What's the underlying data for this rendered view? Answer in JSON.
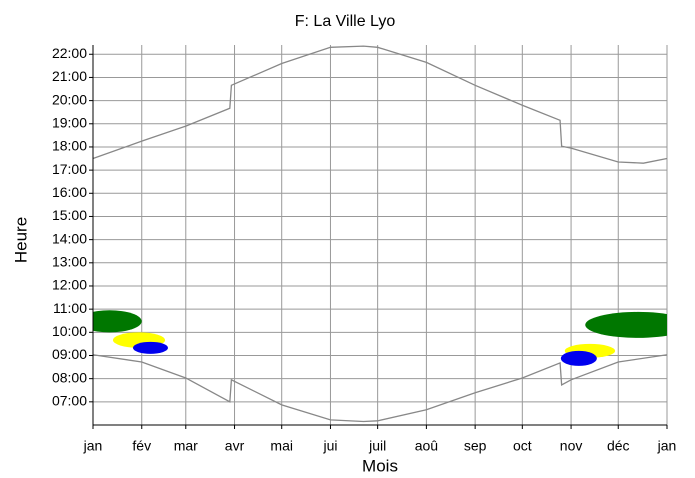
{
  "chart_data": {
    "type": "line",
    "title": "F: La Ville Lyo",
    "xlabel": "Mois",
    "ylabel": "Heure",
    "xlim": [
      0,
      365
    ],
    "xticks": [
      {
        "value": 0,
        "label": "jan"
      },
      {
        "value": 31,
        "label": "fév"
      },
      {
        "value": 59,
        "label": "mar"
      },
      {
        "value": 90,
        "label": "avr"
      },
      {
        "value": 120,
        "label": "mai"
      },
      {
        "value": 151,
        "label": "jui"
      },
      {
        "value": 181,
        "label": "juil"
      },
      {
        "value": 212,
        "label": "aoû"
      },
      {
        "value": 243,
        "label": "sep"
      },
      {
        "value": 273,
        "label": "oct"
      },
      {
        "value": 304,
        "label": "nov"
      },
      {
        "value": 334,
        "label": "déc"
      },
      {
        "value": 365,
        "label": "jan"
      }
    ],
    "ylim": [
      6,
      22.4
    ],
    "yticks": [
      {
        "value": 7,
        "label": "07:00"
      },
      {
        "value": 8,
        "label": "08:00"
      },
      {
        "value": 9,
        "label": "09:00"
      },
      {
        "value": 10,
        "label": "10:00"
      },
      {
        "value": 11,
        "label": "11:00"
      },
      {
        "value": 12,
        "label": "12:00"
      },
      {
        "value": 13,
        "label": "13:00"
      },
      {
        "value": 14,
        "label": "14:00"
      },
      {
        "value": 15,
        "label": "15:00"
      },
      {
        "value": 16,
        "label": "16:00"
      },
      {
        "value": 17,
        "label": "17:00"
      },
      {
        "value": 18,
        "label": "18:00"
      },
      {
        "value": 19,
        "label": "19:00"
      },
      {
        "value": 20,
        "label": "20:00"
      },
      {
        "value": 21,
        "label": "21:00"
      },
      {
        "value": 22,
        "label": "22:00"
      }
    ],
    "grid": true,
    "series": [
      {
        "color": "#888888",
        "x": [
          0,
          31,
          59,
          87,
          88,
          120,
          151,
          172,
          181,
          212,
          243,
          273,
          297,
          298,
          304,
          334,
          350,
          365
        ],
        "values": [
          17.5,
          18.25,
          18.9,
          19.67,
          20.66,
          21.6,
          22.3,
          22.35,
          22.3,
          21.65,
          20.66,
          19.8,
          19.15,
          18.03,
          17.95,
          17.35,
          17.3,
          17.5
        ]
      },
      {
        "color": "#888888",
        "x": [
          0,
          31,
          59,
          87,
          88,
          120,
          151,
          172,
          181,
          212,
          243,
          273,
          297,
          298,
          304,
          334,
          365
        ],
        "values": [
          9.03,
          8.72,
          8.03,
          7.0,
          7.95,
          6.87,
          6.22,
          6.15,
          6.18,
          6.66,
          7.39,
          8.03,
          8.68,
          7.73,
          7.95,
          8.72,
          9.03
        ]
      }
    ],
    "areas": [
      {
        "color": "#007700",
        "x": [
          -10,
          31
        ],
        "y": [
          10.0,
          10.95
        ]
      },
      {
        "color": "#ffff00",
        "x": [
          12.7,
          45.8
        ],
        "y": [
          9.33,
          10.0
        ]
      },
      {
        "color": "#0000ee",
        "x": [
          25.4,
          47.7
        ],
        "y": [
          9.07,
          9.59
        ]
      },
      {
        "color": "#007700",
        "x": [
          313,
          380
        ],
        "y": [
          9.76,
          10.88
        ]
      },
      {
        "color": "#ffff00",
        "x": [
          300,
          332
        ],
        "y": [
          8.9,
          9.5
        ]
      },
      {
        "color": "#0000ee",
        "x": [
          297.5,
          320.4
        ],
        "y": [
          8.55,
          9.2
        ]
      }
    ]
  }
}
